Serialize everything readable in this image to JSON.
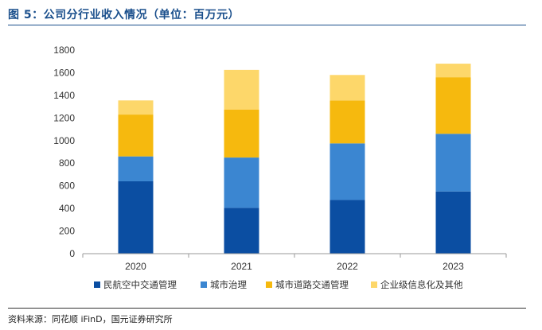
{
  "figure": {
    "title": "图 5：公司分行业收入情况（单位：百万元）",
    "source": "资料来源：同花顺 iFinD，国元证券研究所"
  },
  "chart_data": {
    "type": "bar",
    "stacked": true,
    "categories": [
      "2020",
      "2021",
      "2022",
      "2023"
    ],
    "series": [
      {
        "name": "民航空中交通管理",
        "color": "#0b4ea2",
        "values": [
          640,
          405,
          475,
          550
        ]
      },
      {
        "name": "城市治理",
        "color": "#3b86d1",
        "values": [
          220,
          445,
          500,
          510
        ]
      },
      {
        "name": "城市道路交通管理",
        "color": "#f6b90e",
        "values": [
          370,
          425,
          380,
          500
        ]
      },
      {
        "name": "企业级信息化及其他",
        "color": "#fdd76a",
        "values": [
          125,
          350,
          225,
          120
        ]
      }
    ],
    "ylim": [
      0,
      1800
    ],
    "yticks": [
      0,
      200,
      400,
      600,
      800,
      1000,
      1200,
      1400,
      1600,
      1800
    ],
    "grid": false,
    "legend_position": "bottom"
  }
}
